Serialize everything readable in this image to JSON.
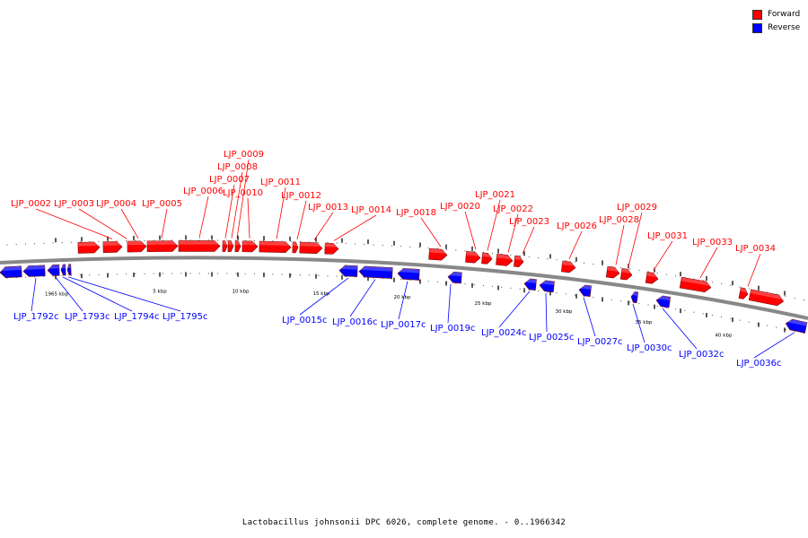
{
  "legend": {
    "forward": {
      "label": "Forward",
      "color": "#ff0000"
    },
    "reverse": {
      "label": "Reverse",
      "color": "#0000ff"
    }
  },
  "caption": "Lactobacillus johnsonii DPC 6026, complete genome. - 0..1966342",
  "ticks": [
    "1965 kbp",
    "5 kbp",
    "10 kbp",
    "15 kbp",
    "20 kbp",
    "25 kbp",
    "30 kbp",
    "35 kbp",
    "40 kbp"
  ],
  "forward_labels": [
    "LJP_0002",
    "LJP_0003",
    "LJP_0004",
    "LJP_0005",
    "LJP_0006",
    "LJP_0007",
    "LJP_0008",
    "LJP_0009",
    "LJP_0010",
    "LJP_0011",
    "LJP_0012",
    "LJP_0013",
    "LJP_0014",
    "LJP_0018",
    "LJP_0020",
    "LJP_0021",
    "LJP_0022",
    "LJP_0023",
    "LJP_0026",
    "LJP_0028",
    "LJP_0029",
    "LJP_0031",
    "LJP_0033",
    "LJP_0034"
  ],
  "reverse_labels": [
    "LJP_1792c",
    "LJP_1793c",
    "LJP_1794c",
    "LJP_1795c",
    "LJP_0015c",
    "LJP_0016c",
    "LJP_0017c",
    "LJP_0019c",
    "LJP_0024c",
    "LJP_0025c",
    "LJP_0027c",
    "LJP_0030c",
    "LJP_0032c",
    "LJP_0036c"
  ]
}
